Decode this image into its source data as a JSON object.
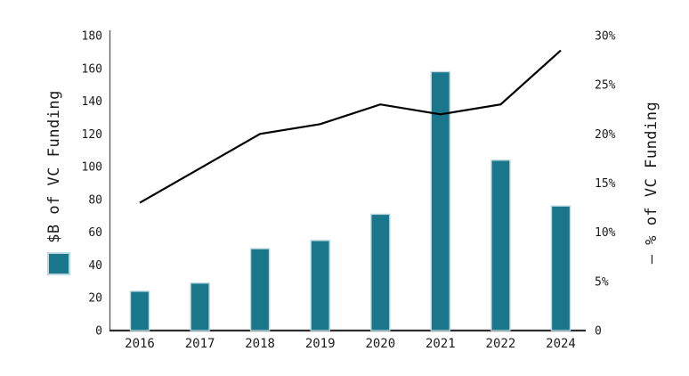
{
  "chart_data": {
    "type": "bar+line",
    "title": "",
    "categories": [
      "2016",
      "2017",
      "2018",
      "2019",
      "2020",
      "2021",
      "2022",
      "2024"
    ],
    "series": [
      {
        "name": "$B of VC Funding",
        "type": "bar",
        "axis": "left",
        "values": [
          24,
          29,
          50,
          55,
          71,
          158,
          104,
          76
        ]
      },
      {
        "name": "% of VC Funding",
        "type": "line",
        "axis": "right",
        "values": [
          13,
          16.5,
          20,
          21,
          23,
          22,
          23,
          28.5
        ]
      }
    ],
    "left_axis": {
      "title": "$B of VC Funding",
      "range": [
        0,
        180
      ],
      "tick_values": [
        0,
        20,
        40,
        60,
        80,
        100,
        120,
        140,
        160,
        180
      ],
      "tick_labels": [
        "0",
        "20",
        "40",
        "60",
        "80",
        "100",
        "120",
        "140",
        "160",
        "180"
      ]
    },
    "right_axis": {
      "title": "— % of VC Funding",
      "range": [
        0,
        30
      ],
      "tick_values": [
        0,
        5,
        10,
        15,
        20,
        25,
        30
      ],
      "tick_labels": [
        "0",
        "5%",
        "10%",
        "15%",
        "20%",
        "25%",
        "30%"
      ]
    },
    "legend": {
      "bar_swatch": "square",
      "line_glyph": "—"
    },
    "colors": {
      "bar": "#19768b",
      "bar_edge": "#b9d8df",
      "line": "#000000",
      "text": "#1a1a1a",
      "spine_left": "#555555",
      "spine_bottom": "#2e2e2e",
      "background": "#ffffff"
    },
    "grid": false,
    "legend_position": "rotated-axis-titles"
  }
}
